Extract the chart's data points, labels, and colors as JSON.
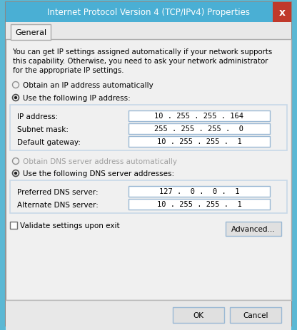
{
  "title": "Internet Protocol Version 4 (TCP/IPv4) Properties",
  "title_bg": "#4aafd4",
  "title_color": "#ffffff",
  "close_btn_color": "#c0392b",
  "tab_label": "General",
  "description_lines": [
    "You can get IP settings assigned automatically if your network supports",
    "this capability. Otherwise, you need to ask your network administrator",
    "for the appropriate IP settings."
  ],
  "radio_auto_ip": "Obtain an IP address automatically",
  "radio_manual_ip": "Use the following IP address:",
  "ip_fields": [
    {
      "label": "IP address:",
      "value": "10 . 255 . 255 . 164"
    },
    {
      "label": "Subnet mask:",
      "value": "255 . 255 . 255 .  0"
    },
    {
      "label": "Default gateway:",
      "value": "10 . 255 . 255 .  1"
    }
  ],
  "radio_auto_dns": "Obtain DNS server address automatically",
  "radio_manual_dns": "Use the following DNS server addresses:",
  "dns_fields": [
    {
      "label": "Preferred DNS server:",
      "value": "127 .  0 .  0 .  1"
    },
    {
      "label": "Alternate DNS server:",
      "value": "10 . 255 . 255 .  1"
    }
  ],
  "checkbox_label": "Validate settings upon exit",
  "btn_advanced": "Advanced...",
  "btn_ok": "OK",
  "btn_cancel": "Cancel",
  "bg_outer": "#5bb8d4",
  "bg_dialog": "#e8e8e8",
  "bg_content": "#f0f0f0",
  "bg_tab_active": "#f0f0f0",
  "field_bg": "#ffffff",
  "field_border": "#9ab8d4",
  "text_color": "#000000",
  "text_disabled": "#a0a0a0",
  "border_main": "#9ab8d4",
  "group_border": "#c8d8e8",
  "btn_bg": "#e0e0e0",
  "btn_border": "#9ab8d4"
}
